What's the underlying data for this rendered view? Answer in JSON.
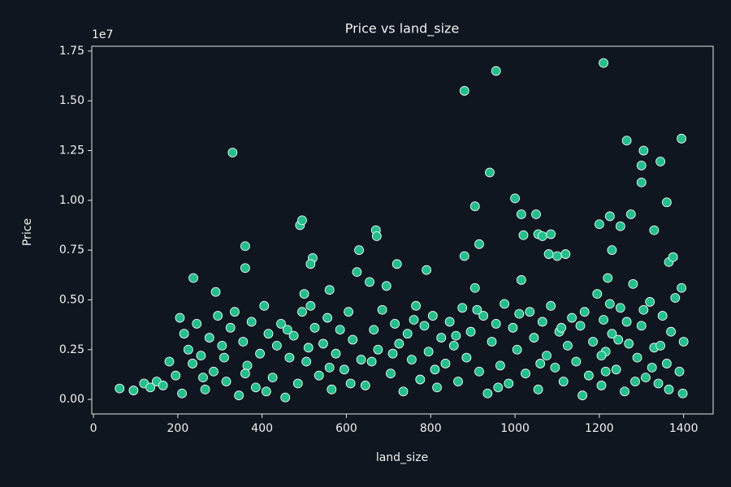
{
  "chart_data": {
    "type": "scatter",
    "title": "Price vs land_size",
    "x_label": "land_size",
    "y_label": "Price",
    "y_offset_label": "1e7",
    "color": "#20c08a",
    "edge_color": "#ffffff",
    "xlim": [
      -4,
      1470
    ],
    "ylim": [
      -0.073,
      1.774
    ],
    "xticks": [
      0,
      200,
      400,
      600,
      800,
      1000,
      1200,
      1400
    ],
    "yticks": [
      {
        "value": 0,
        "label": "0.00"
      },
      {
        "value": 0.25,
        "label": "0.25"
      },
      {
        "value": 0.5,
        "label": "0.50"
      },
      {
        "value": 0.75,
        "label": "0.75"
      },
      {
        "value": 1,
        "label": "1.00"
      },
      {
        "value": 1.25,
        "label": "1.25"
      },
      {
        "value": 1.5,
        "label": "1.50"
      },
      {
        "value": 1.75,
        "label": "1.75"
      }
    ],
    "x": [
      120,
      135,
      150,
      165,
      180,
      195,
      205,
      215,
      225,
      235,
      245,
      255,
      265,
      275,
      285,
      295,
      305,
      315,
      325,
      335,
      345,
      355,
      365,
      375,
      385,
      395,
      405,
      415,
      425,
      435,
      445,
      455,
      465,
      475,
      485,
      495,
      505,
      515,
      525,
      535,
      545,
      555,
      565,
      575,
      585,
      595,
      605,
      615,
      625,
      635,
      645,
      655,
      665,
      675,
      685,
      695,
      705,
      715,
      725,
      735,
      745,
      755,
      765,
      775,
      785,
      795,
      805,
      815,
      825,
      835,
      845,
      855,
      865,
      875,
      885,
      895,
      905,
      915,
      925,
      935,
      945,
      955,
      965,
      975,
      985,
      995,
      1005,
      1015,
      1025,
      1035,
      1045,
      1055,
      1065,
      1075,
      1085,
      1095,
      1105,
      1115,
      1125,
      1135,
      1145,
      1155,
      1165,
      1175,
      1185,
      1195,
      1205,
      1210,
      1215,
      1220,
      1230,
      1240,
      1250,
      1260,
      1270,
      1280,
      1290,
      1300,
      1310,
      1320,
      1330,
      1340,
      1350,
      1360,
      1370,
      1380,
      1390,
      1395,
      1398,
      1400,
      210,
      260,
      310,
      360,
      410,
      460,
      510,
      560,
      610,
      660,
      710,
      760,
      810,
      860,
      910,
      960,
      1010,
      1060,
      1110,
      1160,
      1205,
      1215,
      1225,
      1245,
      1265,
      1285,
      1305,
      1325,
      1345,
      1365,
      62,
      95,
      330,
      360,
      360,
      237,
      290,
      490,
      495,
      670,
      672,
      880,
      955,
      940,
      905,
      1000,
      1015,
      1050,
      1055,
      1065,
      1020,
      1085,
      1210,
      1265,
      1305,
      1300,
      1345,
      1395,
      1300,
      1360,
      1275,
      1225,
      1200,
      1330,
      1250,
      1230,
      1365,
      1375,
      880,
      915,
      520,
      515,
      630,
      720,
      790,
      1100,
      1120,
      1080,
      560,
      500
    ],
    "values": [
      0.08,
      0.06,
      0.09,
      0.07,
      0.19,
      0.12,
      0.41,
      0.33,
      0.25,
      0.18,
      0.38,
      0.22,
      0.05,
      0.31,
      0.14,
      0.42,
      0.27,
      0.09,
      0.36,
      0.44,
      0.02,
      0.29,
      0.17,
      0.39,
      0.06,
      0.23,
      0.47,
      0.33,
      0.11,
      0.27,
      0.38,
      0.01,
      0.21,
      0.32,
      0.08,
      0.44,
      0.19,
      0.47,
      0.36,
      0.12,
      0.28,
      0.41,
      0.05,
      0.23,
      0.35,
      0.15,
      0.44,
      0.3,
      0.64,
      0.2,
      0.07,
      0.59,
      0.35,
      0.25,
      0.45,
      0.57,
      0.13,
      0.38,
      0.28,
      0.04,
      0.33,
      0.2,
      0.47,
      0.1,
      0.37,
      0.24,
      0.42,
      0.06,
      0.31,
      0.18,
      0.39,
      0.27,
      0.09,
      0.46,
      0.21,
      0.34,
      0.56,
      0.14,
      0.42,
      0.03,
      0.29,
      0.38,
      0.17,
      0.48,
      0.08,
      0.36,
      0.25,
      0.6,
      0.13,
      0.44,
      0.31,
      0.05,
      0.39,
      0.22,
      0.47,
      0.16,
      0.34,
      0.09,
      0.27,
      0.41,
      0.19,
      0.37,
      0.44,
      0.12,
      0.29,
      0.53,
      0.07,
      0.4,
      0.24,
      0.61,
      0.33,
      0.15,
      0.46,
      0.04,
      0.28,
      0.58,
      0.21,
      0.37,
      0.11,
      0.49,
      0.26,
      0.08,
      0.42,
      0.18,
      0.34,
      0.51,
      0.14,
      0.56,
      0.03,
      0.29,
      0.03,
      0.11,
      0.21,
      0.13,
      0.04,
      0.35,
      0.26,
      0.16,
      0.08,
      0.19,
      0.23,
      0.4,
      0.15,
      0.32,
      0.45,
      0.06,
      0.43,
      0.18,
      0.36,
      0.02,
      0.22,
      0.14,
      0.48,
      0.3,
      0.39,
      0.09,
      0.45,
      0.16,
      0.27,
      0.05,
      0.055,
      0.045,
      1.24,
      0.77,
      0.66,
      0.61,
      0.54,
      0.875,
      0.9,
      0.85,
      0.82,
      1.55,
      1.65,
      1.14,
      0.97,
      1.01,
      0.93,
      0.93,
      0.83,
      0.82,
      0.825,
      0.83,
      1.69,
      1.3,
      1.25,
      1.175,
      1.195,
      1.31,
      1.09,
      0.99,
      0.93,
      0.92,
      0.88,
      0.85,
      0.87,
      0.75,
      0.69,
      0.715,
      0.72,
      0.78,
      0.71,
      0.68,
      0.75,
      0.68,
      0.65,
      0.72,
      0.73,
      0.73,
      0.55,
      0.53
    ]
  }
}
